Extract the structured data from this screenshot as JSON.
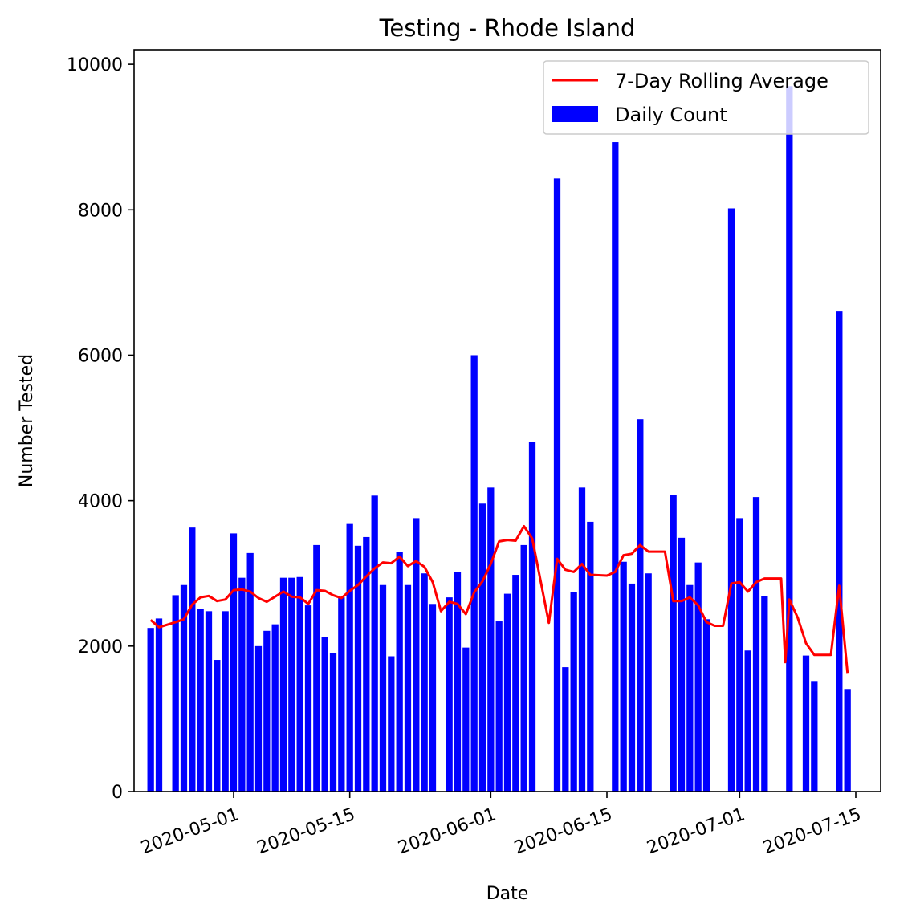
{
  "chart_data": {
    "type": "bar",
    "title": "Testing - Rhode Island",
    "xlabel": "Date",
    "ylabel": "Number Tested",
    "ylim": [
      0,
      10200
    ],
    "xlim": [
      "2020-04-19",
      "2020-07-18"
    ],
    "yticks": [
      0,
      2000,
      4000,
      6000,
      8000,
      10000
    ],
    "xticks": [
      "2020-05-01",
      "2020-05-15",
      "2020-06-01",
      "2020-06-15",
      "2020-07-01",
      "2020-07-15"
    ],
    "grid": false,
    "legend_position": "top-right",
    "legend": [
      {
        "label": "7-Day Rolling Average",
        "kind": "line",
        "color": "#ff0000"
      },
      {
        "label": "Daily Count",
        "kind": "bar",
        "color": "#0000ff"
      }
    ],
    "series": [
      {
        "name": "Daily Count",
        "kind": "bar",
        "color": "#0000ff",
        "points": [
          [
            "2020-04-21",
            2250
          ],
          [
            "2020-04-22",
            2380
          ],
          [
            "2020-04-24",
            2700
          ],
          [
            "2020-04-25",
            2840
          ],
          [
            "2020-04-26",
            3630
          ],
          [
            "2020-04-27",
            2510
          ],
          [
            "2020-04-28",
            2480
          ],
          [
            "2020-04-29",
            1810
          ],
          [
            "2020-04-30",
            2480
          ],
          [
            "2020-05-01",
            3550
          ],
          [
            "2020-05-02",
            2940
          ],
          [
            "2020-05-03",
            3280
          ],
          [
            "2020-05-04",
            2000
          ],
          [
            "2020-05-05",
            2210
          ],
          [
            "2020-05-06",
            2300
          ],
          [
            "2020-05-07",
            2940
          ],
          [
            "2020-05-08",
            2940
          ],
          [
            "2020-05-09",
            2950
          ],
          [
            "2020-05-10",
            2560
          ],
          [
            "2020-05-11",
            3390
          ],
          [
            "2020-05-12",
            2130
          ],
          [
            "2020-05-13",
            1900
          ],
          [
            "2020-05-14",
            2670
          ],
          [
            "2020-05-15",
            3680
          ],
          [
            "2020-05-16",
            3380
          ],
          [
            "2020-05-17",
            3500
          ],
          [
            "2020-05-18",
            4070
          ],
          [
            "2020-05-19",
            2840
          ],
          [
            "2020-05-20",
            1860
          ],
          [
            "2020-05-21",
            3290
          ],
          [
            "2020-05-22",
            2840
          ],
          [
            "2020-05-23",
            3760
          ],
          [
            "2020-05-24",
            3000
          ],
          [
            "2020-05-25",
            2580
          ],
          [
            "2020-05-27",
            2670
          ],
          [
            "2020-05-28",
            3020
          ],
          [
            "2020-05-29",
            1980
          ],
          [
            "2020-05-30",
            6000
          ],
          [
            "2020-05-31",
            3960
          ],
          [
            "2020-06-01",
            4180
          ],
          [
            "2020-06-02",
            2340
          ],
          [
            "2020-06-03",
            2720
          ],
          [
            "2020-06-04",
            2980
          ],
          [
            "2020-06-05",
            3390
          ],
          [
            "2020-06-06",
            4810
          ],
          [
            "2020-06-09",
            8430
          ],
          [
            "2020-06-10",
            1710
          ],
          [
            "2020-06-11",
            2740
          ],
          [
            "2020-06-12",
            4180
          ],
          [
            "2020-06-13",
            3710
          ],
          [
            "2020-06-16",
            8930
          ],
          [
            "2020-06-17",
            3160
          ],
          [
            "2020-06-18",
            2860
          ],
          [
            "2020-06-19",
            5120
          ],
          [
            "2020-06-20",
            3000
          ],
          [
            "2020-06-23",
            4080
          ],
          [
            "2020-06-24",
            3490
          ],
          [
            "2020-06-25",
            2840
          ],
          [
            "2020-06-26",
            3150
          ],
          [
            "2020-06-27",
            2370
          ],
          [
            "2020-06-30",
            8020
          ],
          [
            "2020-07-01",
            3760
          ],
          [
            "2020-07-02",
            1940
          ],
          [
            "2020-07-03",
            4050
          ],
          [
            "2020-07-04",
            2690
          ],
          [
            "2020-07-07",
            9700
          ],
          [
            "2020-07-09",
            1870
          ],
          [
            "2020-07-10",
            1520
          ],
          [
            "2020-07-13",
            6600
          ],
          [
            "2020-07-14",
            1410
          ]
        ]
      },
      {
        "name": "7-Day Rolling Average",
        "kind": "line",
        "color": "#ff0000",
        "points": [
          [
            "2020-04-21",
            2360
          ],
          [
            "2020-04-22",
            2260
          ],
          [
            "2020-04-24",
            2330
          ],
          [
            "2020-04-25",
            2370
          ],
          [
            "2020-04-26",
            2570
          ],
          [
            "2020-04-27",
            2670
          ],
          [
            "2020-04-28",
            2690
          ],
          [
            "2020-04-29",
            2620
          ],
          [
            "2020-04-30",
            2640
          ],
          [
            "2020-05-01",
            2770
          ],
          [
            "2020-05-02",
            2780
          ],
          [
            "2020-05-03",
            2750
          ],
          [
            "2020-05-04",
            2660
          ],
          [
            "2020-05-05",
            2610
          ],
          [
            "2020-05-06",
            2680
          ],
          [
            "2020-05-07",
            2750
          ],
          [
            "2020-05-08",
            2680
          ],
          [
            "2020-05-09",
            2670
          ],
          [
            "2020-05-10",
            2580
          ],
          [
            "2020-05-11",
            2770
          ],
          [
            "2020-05-12",
            2760
          ],
          [
            "2020-05-13",
            2700
          ],
          [
            "2020-05-14",
            2660
          ],
          [
            "2020-05-15",
            2760
          ],
          [
            "2020-05-16",
            2840
          ],
          [
            "2020-05-17",
            2960
          ],
          [
            "2020-05-18",
            3070
          ],
          [
            "2020-05-19",
            3150
          ],
          [
            "2020-05-20",
            3140
          ],
          [
            "2020-05-21",
            3230
          ],
          [
            "2020-05-22",
            3100
          ],
          [
            "2020-05-23",
            3170
          ],
          [
            "2020-05-24",
            3090
          ],
          [
            "2020-05-25",
            2880
          ],
          [
            "2020-05-26",
            2480
          ],
          [
            "2020-05-27",
            2610
          ],
          [
            "2020-05-28",
            2580
          ],
          [
            "2020-05-29",
            2440
          ],
          [
            "2020-05-30",
            2740
          ],
          [
            "2020-05-31",
            2890
          ],
          [
            "2020-06-01",
            3130
          ],
          [
            "2020-06-02",
            3440
          ],
          [
            "2020-06-03",
            3460
          ],
          [
            "2020-06-04",
            3450
          ],
          [
            "2020-06-05",
            3650
          ],
          [
            "2020-06-06",
            3480
          ],
          [
            "2020-06-08",
            2320
          ],
          [
            "2020-06-09",
            3200
          ],
          [
            "2020-06-10",
            3050
          ],
          [
            "2020-06-11",
            3020
          ],
          [
            "2020-06-12",
            3130
          ],
          [
            "2020-06-13",
            2980
          ],
          [
            "2020-06-15",
            2970
          ],
          [
            "2020-06-16",
            3020
          ],
          [
            "2020-06-17",
            3250
          ],
          [
            "2020-06-18",
            3270
          ],
          [
            "2020-06-19",
            3390
          ],
          [
            "2020-06-20",
            3300
          ],
          [
            "2020-06-22",
            3300
          ],
          [
            "2020-06-23",
            2620
          ],
          [
            "2020-06-24",
            2620
          ],
          [
            "2020-06-25",
            2670
          ],
          [
            "2020-06-26",
            2560
          ],
          [
            "2020-06-27",
            2330
          ],
          [
            "2020-06-28",
            2280
          ],
          [
            "2020-06-29",
            2280
          ],
          [
            "2020-06-30",
            2860
          ],
          [
            "2020-07-01",
            2880
          ],
          [
            "2020-07-02",
            2750
          ],
          [
            "2020-07-03",
            2880
          ],
          [
            "2020-07-04",
            2930
          ],
          [
            "2020-07-06",
            2930
          ],
          [
            "2020-07-06 12:00",
            1780
          ],
          [
            "2020-07-07",
            2640
          ],
          [
            "2020-07-08",
            2390
          ],
          [
            "2020-07-09",
            2040
          ],
          [
            "2020-07-10",
            1880
          ],
          [
            "2020-07-12",
            1880
          ],
          [
            "2020-07-13",
            2830
          ],
          [
            "2020-07-14",
            1630
          ]
        ]
      }
    ]
  }
}
